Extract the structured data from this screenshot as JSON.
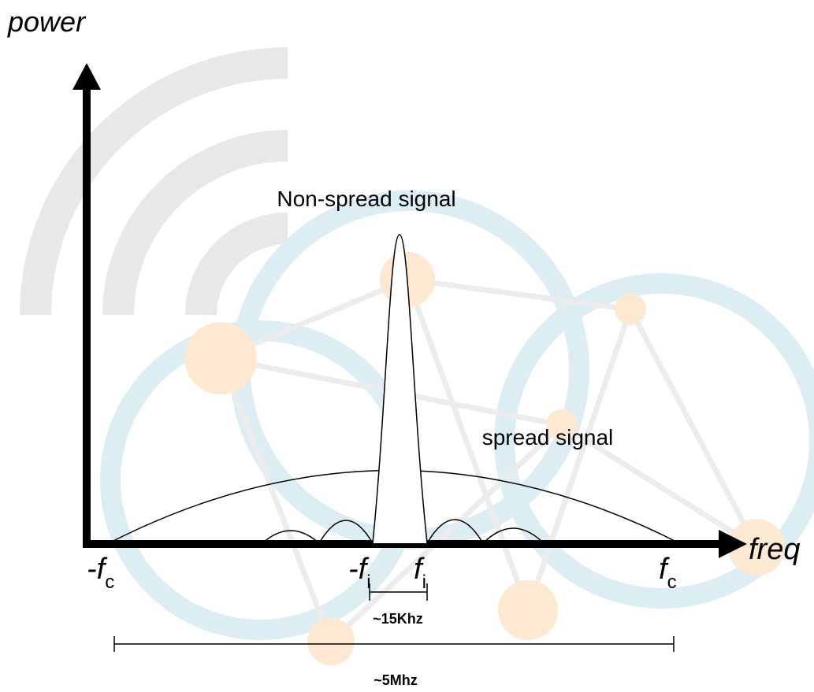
{
  "axes": {
    "y_label": "power",
    "x_label": "freq"
  },
  "curves": {
    "narrow": "Non-spread signal",
    "wide": "spread signal"
  },
  "markers": [
    {
      "main": "-f",
      "sub": "c"
    },
    {
      "main": "-f",
      "sub": "i"
    },
    {
      "main": "f",
      "sub": "i"
    },
    {
      "main": "f",
      "sub": "c"
    }
  ],
  "spans": {
    "narrow": "~15Khz",
    "wide": "~5Mhz"
  }
}
